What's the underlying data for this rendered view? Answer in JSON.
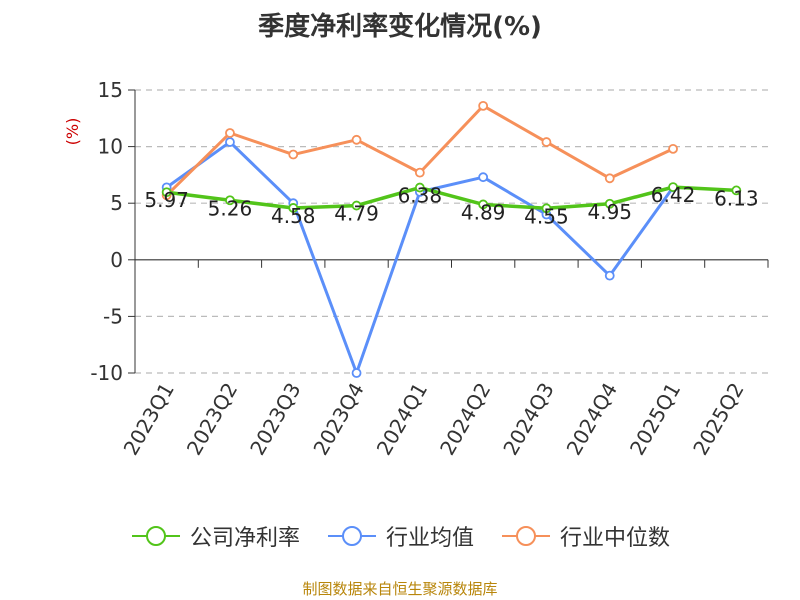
{
  "chart_data": {
    "type": "line",
    "title": "季度净利率变化情况(%)",
    "ylabel": "(%)",
    "xlabel": "",
    "categories": [
      "2023Q1",
      "2023Q2",
      "2023Q3",
      "2023Q4",
      "2024Q1",
      "2024Q2",
      "2024Q3",
      "2024Q4",
      "2025Q1",
      "2025Q2"
    ],
    "ylim": [
      -10,
      15
    ],
    "yticks": [
      -10,
      -5,
      0,
      5,
      10,
      15
    ],
    "grid": true,
    "legend_position": "bottom",
    "series": [
      {
        "name": "公司净利率",
        "color": "#52c41a",
        "values": [
          5.97,
          5.26,
          4.58,
          4.79,
          6.38,
          4.89,
          4.55,
          4.95,
          6.42,
          6.13
        ],
        "labels": [
          "5.97",
          "5.26",
          "4.58",
          "4.79",
          "6.38",
          "4.89",
          "4.55",
          "4.95",
          "6.42",
          "6.13"
        ]
      },
      {
        "name": "行业均值",
        "color": "#5b8ff9",
        "values": [
          6.4,
          10.4,
          5.0,
          -10.0,
          6.0,
          7.3,
          4.0,
          -1.4,
          6.4,
          null
        ]
      },
      {
        "name": "行业中位数",
        "color": "#f6905a",
        "values": [
          5.7,
          11.2,
          9.3,
          10.6,
          7.7,
          13.6,
          10.4,
          7.2,
          9.8,
          null
        ]
      }
    ]
  },
  "footer": {
    "source": "制图数据来自恒生聚源数据库"
  }
}
